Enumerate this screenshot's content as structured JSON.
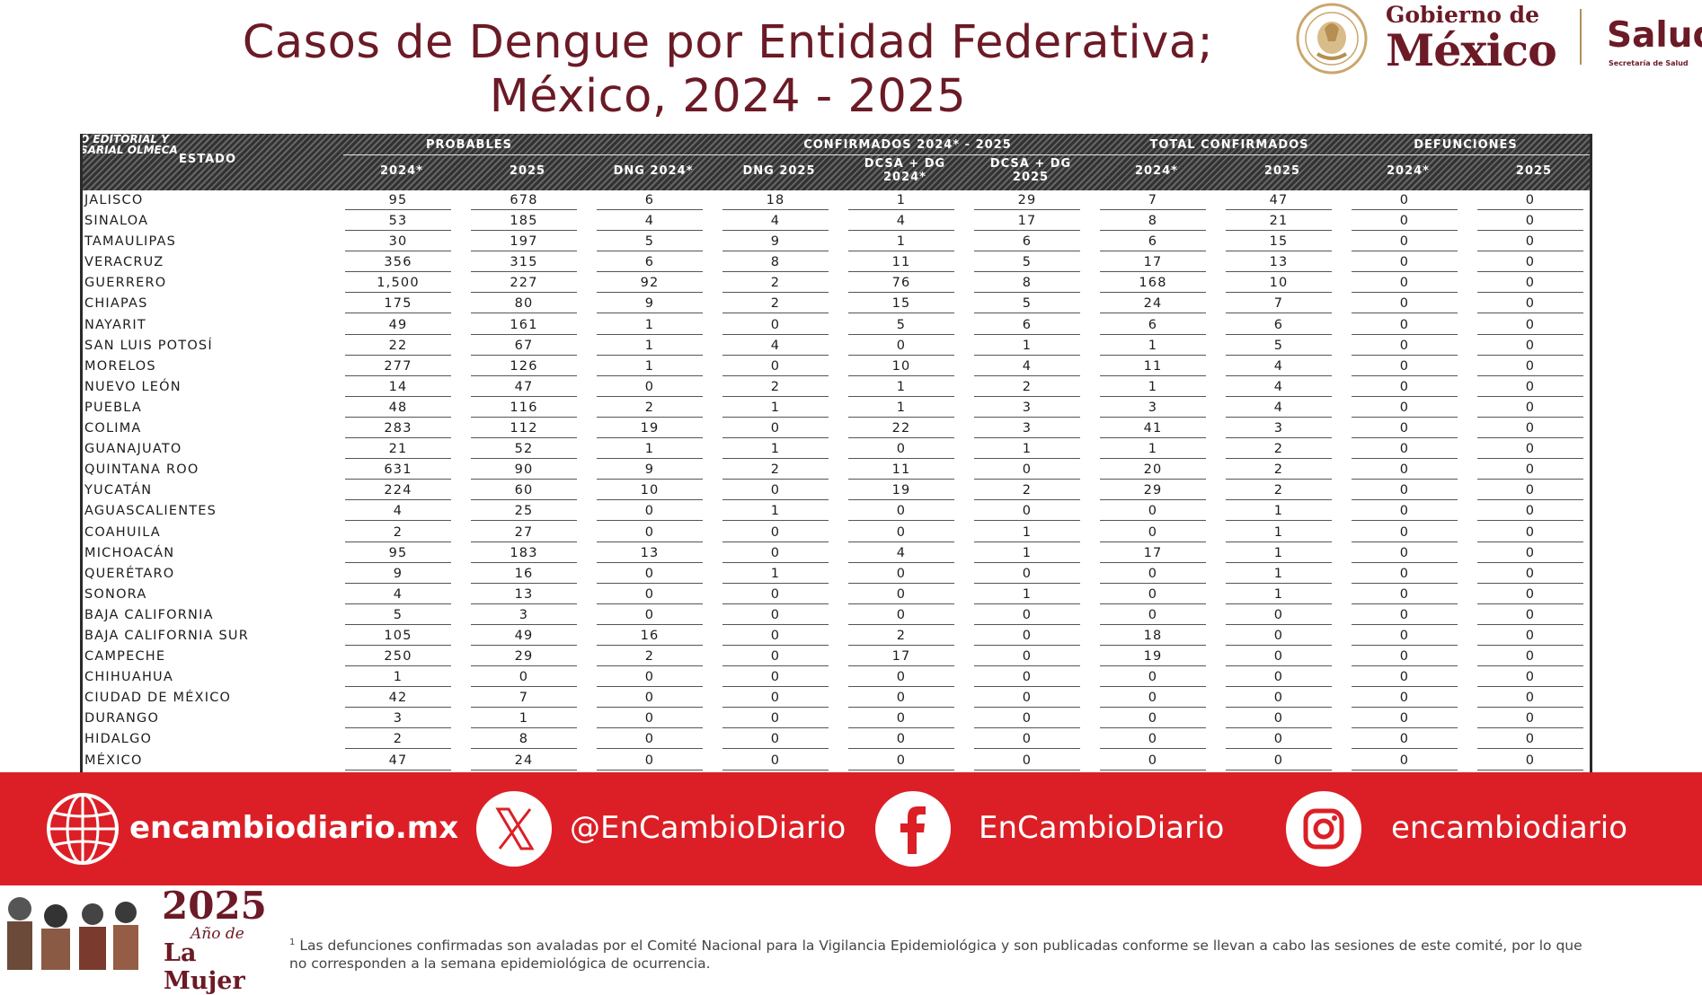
{
  "title": {
    "line1": "Casos de Dengue por Entidad Federativa;",
    "line2": "México, 2024 - 2025"
  },
  "logos": {
    "gobierno_line1": "Gobierno de",
    "gobierno_line2": "México",
    "salud": "Salud",
    "salud_sub": "Secretaría de Salud",
    "seal_icon": "mexican-coat-of-arms-seal"
  },
  "table": {
    "watermark_line1": "O EDITORIAL Y",
    "watermark_line2": "SARIAL OLMECA",
    "state_header": "ESTADO",
    "groups": [
      "PROBABLES",
      "CONFIRMADOS 2024* - 2025",
      "TOTAL CONFIRMADOS",
      "DEFUNCIONES"
    ],
    "columns": [
      {
        "line1": "2024*",
        "line2": ""
      },
      {
        "line1": "2025",
        "line2": ""
      },
      {
        "line1": "DNG 2024*",
        "line2": ""
      },
      {
        "line1": "DNG 2025",
        "line2": ""
      },
      {
        "line1": "DCSA + DG",
        "line2": "2024*"
      },
      {
        "line1": "DCSA + DG",
        "line2": "2025"
      },
      {
        "line1": "2024*",
        "line2": ""
      },
      {
        "line1": "2025",
        "line2": ""
      },
      {
        "line1": "2024*",
        "line2": ""
      },
      {
        "line1": "2025",
        "line2": ""
      }
    ],
    "rows": [
      {
        "state": "JALISCO",
        "values": [
          "95",
          "678",
          "6",
          "18",
          "1",
          "29",
          "7",
          "47",
          "0",
          "0"
        ]
      },
      {
        "state": "SINALOA",
        "values": [
          "53",
          "185",
          "4",
          "4",
          "4",
          "17",
          "8",
          "21",
          "0",
          "0"
        ]
      },
      {
        "state": "TAMAULIPAS",
        "values": [
          "30",
          "197",
          "5",
          "9",
          "1",
          "6",
          "6",
          "15",
          "0",
          "0"
        ]
      },
      {
        "state": "VERACRUZ",
        "values": [
          "356",
          "315",
          "6",
          "8",
          "11",
          "5",
          "17",
          "13",
          "0",
          "0"
        ]
      },
      {
        "state": "GUERRERO",
        "values": [
          "1,500",
          "227",
          "92",
          "2",
          "76",
          "8",
          "168",
          "10",
          "0",
          "0"
        ]
      },
      {
        "state": "CHIAPAS",
        "values": [
          "175",
          "80",
          "9",
          "2",
          "15",
          "5",
          "24",
          "7",
          "0",
          "0"
        ]
      },
      {
        "state": "NAYARIT",
        "values": [
          "49",
          "161",
          "1",
          "0",
          "5",
          "6",
          "6",
          "6",
          "0",
          "0"
        ]
      },
      {
        "state": "SAN LUIS POTOSÍ",
        "values": [
          "22",
          "67",
          "1",
          "4",
          "0",
          "1",
          "1",
          "5",
          "0",
          "0"
        ]
      },
      {
        "state": "MORELOS",
        "values": [
          "277",
          "126",
          "1",
          "0",
          "10",
          "4",
          "11",
          "4",
          "0",
          "0"
        ]
      },
      {
        "state": "NUEVO LEÓN",
        "values": [
          "14",
          "47",
          "0",
          "2",
          "1",
          "2",
          "1",
          "4",
          "0",
          "0"
        ]
      },
      {
        "state": "PUEBLA",
        "values": [
          "48",
          "116",
          "2",
          "1",
          "1",
          "3",
          "3",
          "4",
          "0",
          "0"
        ]
      },
      {
        "state": "COLIMA",
        "values": [
          "283",
          "112",
          "19",
          "0",
          "22",
          "3",
          "41",
          "3",
          "0",
          "0"
        ]
      },
      {
        "state": "GUANAJUATO",
        "values": [
          "21",
          "52",
          "1",
          "1",
          "0",
          "1",
          "1",
          "2",
          "0",
          "0"
        ]
      },
      {
        "state": "QUINTANA ROO",
        "values": [
          "631",
          "90",
          "9",
          "2",
          "11",
          "0",
          "20",
          "2",
          "0",
          "0"
        ]
      },
      {
        "state": "YUCATÁN",
        "values": [
          "224",
          "60",
          "10",
          "0",
          "19",
          "2",
          "29",
          "2",
          "0",
          "0"
        ]
      },
      {
        "state": "AGUASCALIENTES",
        "values": [
          "4",
          "25",
          "0",
          "1",
          "0",
          "0",
          "0",
          "1",
          "0",
          "0"
        ]
      },
      {
        "state": "COAHUILA",
        "values": [
          "2",
          "27",
          "0",
          "0",
          "0",
          "1",
          "0",
          "1",
          "0",
          "0"
        ]
      },
      {
        "state": "MICHOACÁN",
        "values": [
          "95",
          "183",
          "13",
          "0",
          "4",
          "1",
          "17",
          "1",
          "0",
          "0"
        ]
      },
      {
        "state": "QUERÉTARO",
        "values": [
          "9",
          "16",
          "0",
          "1",
          "0",
          "0",
          "0",
          "1",
          "0",
          "0"
        ]
      },
      {
        "state": "SONORA",
        "values": [
          "4",
          "13",
          "0",
          "0",
          "0",
          "1",
          "0",
          "1",
          "0",
          "0"
        ]
      },
      {
        "state": "BAJA CALIFORNIA",
        "values": [
          "5",
          "3",
          "0",
          "0",
          "0",
          "0",
          "0",
          "0",
          "0",
          "0"
        ]
      },
      {
        "state": "BAJA CALIFORNIA SUR",
        "values": [
          "105",
          "49",
          "16",
          "0",
          "2",
          "0",
          "18",
          "0",
          "0",
          "0"
        ]
      },
      {
        "state": "CAMPECHE",
        "values": [
          "250",
          "29",
          "2",
          "0",
          "17",
          "0",
          "19",
          "0",
          "0",
          "0"
        ]
      },
      {
        "state": "CHIHUAHUA",
        "values": [
          "1",
          "0",
          "0",
          "0",
          "0",
          "0",
          "0",
          "0",
          "0",
          "0"
        ]
      },
      {
        "state": "CIUDAD DE MÉXICO",
        "values": [
          "42",
          "7",
          "0",
          "0",
          "0",
          "0",
          "0",
          "0",
          "0",
          "0"
        ]
      },
      {
        "state": "DURANGO",
        "values": [
          "3",
          "1",
          "0",
          "0",
          "0",
          "0",
          "0",
          "0",
          "0",
          "0"
        ]
      },
      {
        "state": "HIDALGO",
        "values": [
          "2",
          "8",
          "0",
          "0",
          "0",
          "0",
          "0",
          "0",
          "0",
          "0"
        ]
      },
      {
        "state": "MÉXICO",
        "values": [
          "47",
          "24",
          "0",
          "0",
          "0",
          "0",
          "0",
          "0",
          "0",
          "0"
        ]
      }
    ]
  },
  "banner": {
    "bg_color": "#dc1f26",
    "website": {
      "icon": "globe-icon",
      "text": "encambiodiario.mx"
    },
    "x": {
      "icon": "x-icon",
      "text": "@EnCambioDiario"
    },
    "facebook": {
      "icon": "facebook-icon",
      "text": "EnCambioDiario"
    },
    "instagram": {
      "icon": "instagram-icon",
      "text": "encambiodiario"
    }
  },
  "footer": {
    "year": "2025",
    "year_sub": "Año de",
    "year_sub2": "La Mujer",
    "note_mark": "1",
    "note_line1": "Las defunciones confirmadas son avaladas por el Comité Nacional para la Vigilancia Epidemiológica y son publicadas conforme se llevan a cabo las sesiones de este comité, por lo que",
    "note_line2": "no corresponden a la semana epidemiológica de ocurrencia."
  }
}
